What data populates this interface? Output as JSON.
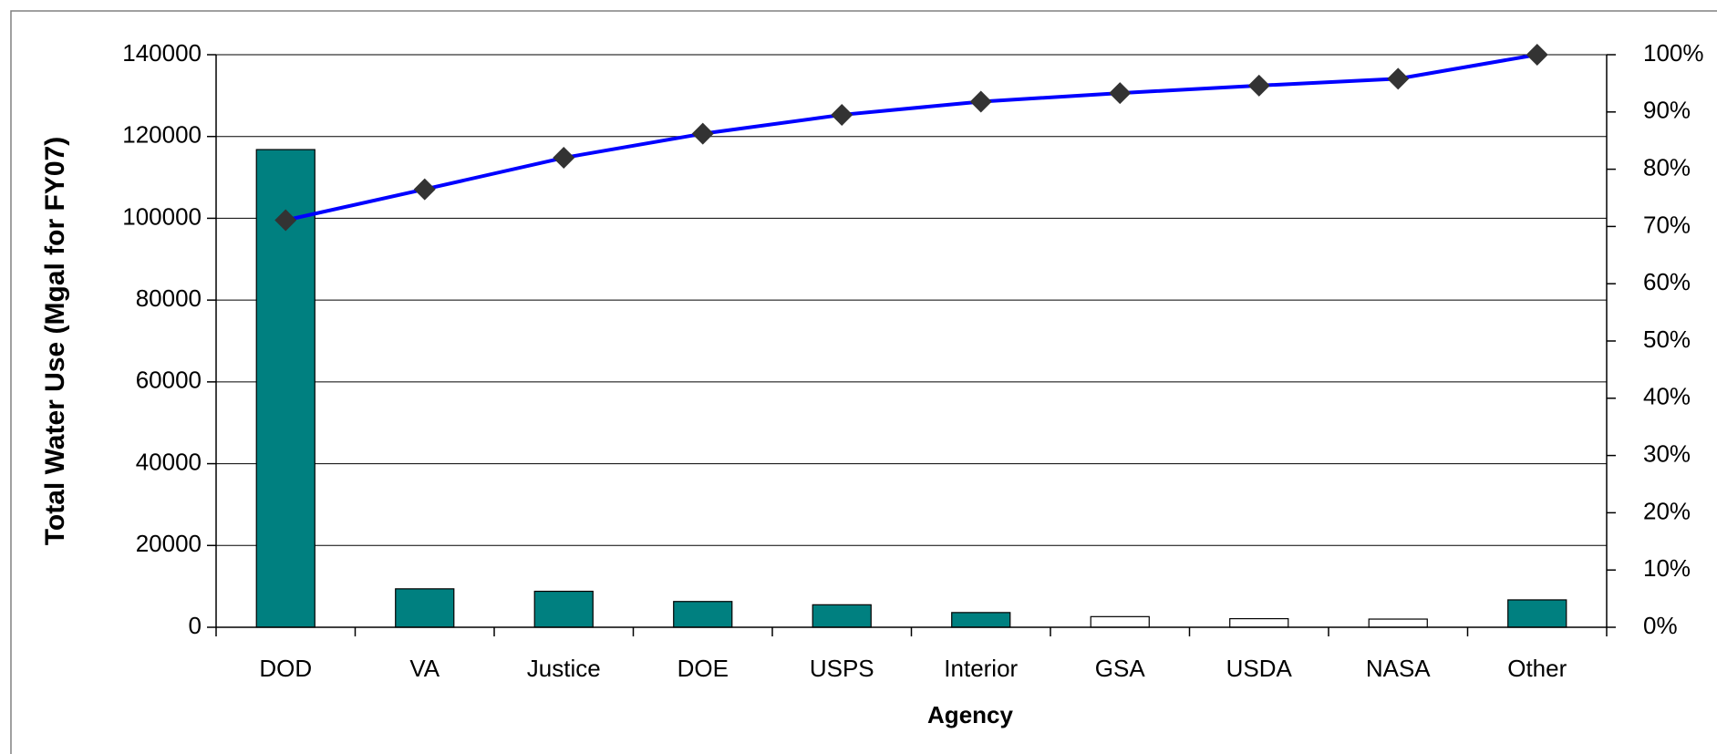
{
  "chart_data": {
    "type": "bar",
    "x_label": "Agency",
    "y_label": "Total Water Use (Mgal for FY07)",
    "categories": [
      "DOD",
      "VA",
      "Justice",
      "DOE",
      "USPS",
      "Interior",
      "GSA",
      "USDA",
      "NASA",
      "Other"
    ],
    "series": [
      {
        "type": "bar",
        "colors": [
          "#008080",
          "#008080",
          "#008080",
          "#008080",
          "#008080",
          "#008080",
          "#ffffff",
          "#ffffff",
          "#ffffff",
          "#008080"
        ],
        "values": [
          116800,
          9400,
          8800,
          6300,
          5500,
          3600,
          2600,
          2100,
          2000,
          6700
        ]
      },
      {
        "type": "line",
        "axis": "y2",
        "color": "#0000ff",
        "marker_color": "#333333",
        "values": [
          71.1,
          76.5,
          82.0,
          86.2,
          89.5,
          91.8,
          93.3,
          94.6,
          95.8,
          100
        ]
      }
    ],
    "ylim": [
      0,
      140000
    ],
    "yticks": [
      0,
      20000,
      40000,
      60000,
      80000,
      100000,
      120000,
      140000
    ],
    "y2lim": [
      0,
      100
    ],
    "y2ticks": [
      {
        "value": 0,
        "label": "0%"
      },
      {
        "value": 10,
        "label": "10%"
      },
      {
        "value": 20,
        "label": "20%"
      },
      {
        "value": 30,
        "label": "30%"
      },
      {
        "value": 40,
        "label": "40%"
      },
      {
        "value": 50,
        "label": "50%"
      },
      {
        "value": 60,
        "label": "60%"
      },
      {
        "value": 70,
        "label": "70%"
      },
      {
        "value": 80,
        "label": "80%"
      },
      {
        "value": 90,
        "label": "90%"
      },
      {
        "value": 100,
        "label": "100%"
      }
    ],
    "grid": true
  }
}
